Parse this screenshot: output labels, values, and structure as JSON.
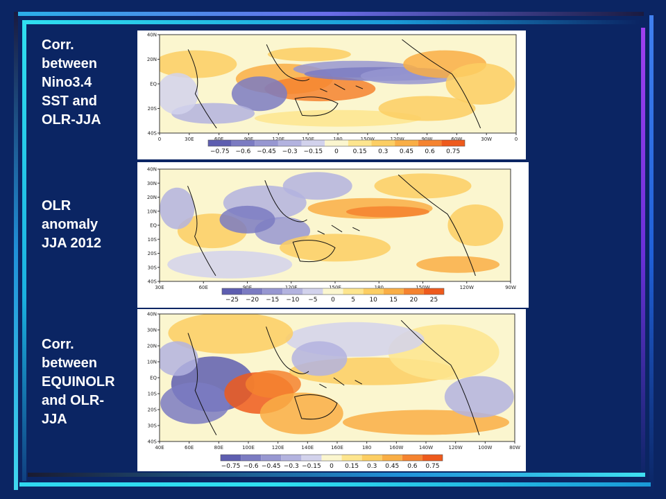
{
  "slide": {
    "background": "#0b2563",
    "captions": [
      "Corr.\nbetween\nNino3.4\nSST and\nOLR-JJA",
      "OLR\nanomaly\nJJA 2012",
      "Corr.\nbetween\nEQUINOLR\nand OLR-\nJJA"
    ]
  },
  "maps": [
    {
      "lat_labels": [
        "40N",
        "20N",
        "EQ",
        "20S",
        "40S"
      ],
      "lon_labels": [
        "0",
        "30E",
        "60E",
        "90E",
        "120E",
        "150E",
        "180",
        "150W",
        "120W",
        "90W",
        "60W",
        "30W",
        "0"
      ],
      "colorbar_labels": [
        "−0.75",
        "−0.6",
        "−0.45",
        "−0.3",
        "−0.15",
        "0",
        "0.15",
        "0.3",
        "0.45",
        "0.6",
        "0.75"
      ]
    },
    {
      "lat_labels": [
        "40N",
        "30N",
        "20N",
        "10N",
        "EQ",
        "10S",
        "20S",
        "30S",
        "40S"
      ],
      "lon_labels": [
        "30E",
        "60E",
        "90E",
        "120E",
        "150E",
        "180",
        "150W",
        "120W",
        "90W"
      ],
      "colorbar_labels": [
        "−25",
        "−20",
        "−15",
        "−10",
        "−5",
        "0",
        "5",
        "10",
        "15",
        "20",
        "25"
      ]
    },
    {
      "lat_labels": [
        "40N",
        "30N",
        "20N",
        "10N",
        "EQ",
        "10S",
        "20S",
        "30S",
        "40S"
      ],
      "lon_labels": [
        "40E",
        "60E",
        "80E",
        "100E",
        "120E",
        "140E",
        "160E",
        "180",
        "160W",
        "140W",
        "120W",
        "100W",
        "80W"
      ],
      "colorbar_labels": [
        "−0.75",
        "−0.6",
        "−0.45",
        "−0.3",
        "−0.15",
        "0",
        "0.15",
        "0.3",
        "0.45",
        "0.6",
        "0.75"
      ]
    }
  ],
  "colorscale": [
    "#5e5eb0",
    "#7b7bc2",
    "#9797d1",
    "#b3b3df",
    "#d2d2ec",
    "#fbf6cf",
    "#fde58e",
    "#fcce63",
    "#f9ae45",
    "#f5832f",
    "#ee5a1c"
  ]
}
